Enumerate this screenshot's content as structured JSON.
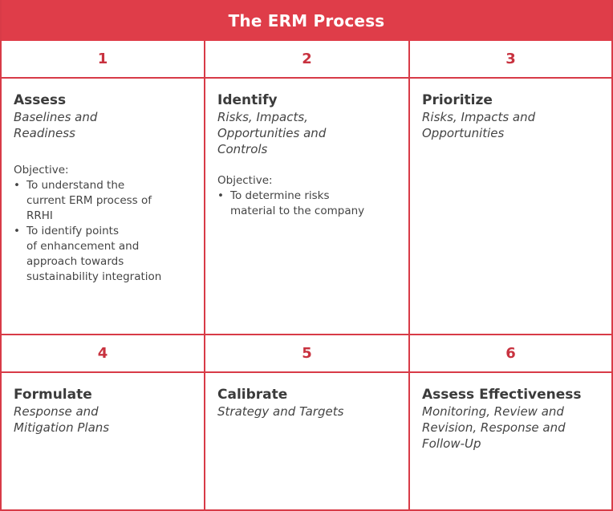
{
  "header": {
    "title": "The ERM Process"
  },
  "steps": [
    {
      "number": "1",
      "title": "Assess",
      "subtitle": "Baselines and\nReadiness",
      "objective_label": "Objective:",
      "objectives": [
        "To understand the\ncurrent ERM process of\nRRHI",
        "To identify points\nof enhancement and\napproach towards\nsustainability integration"
      ]
    },
    {
      "number": "2",
      "title": "Identify",
      "subtitle": "Risks, Impacts,\nOpportunities and\nControls",
      "objective_label": "Objective:",
      "objectives": [
        "To determine risks\nmaterial to the company"
      ]
    },
    {
      "number": "3",
      "title": "Prioritize",
      "subtitle": "Risks, Impacts and\nOpportunities"
    },
    {
      "number": "4",
      "title": "Formulate",
      "subtitle": "Response and\nMitigation Plans"
    },
    {
      "number": "5",
      "title": "Calibrate",
      "subtitle": "Strategy and Targets"
    },
    {
      "number": "6",
      "title": "Assess Effectiveness",
      "subtitle": "Monitoring, Review and\nRevision, Response and\nFollow-Up"
    }
  ],
  "colors": {
    "accent": "#df3d49",
    "border": "#d83b47",
    "number": "#c8323f",
    "text": "#3b3b3b"
  },
  "bullet_glyph": "•"
}
